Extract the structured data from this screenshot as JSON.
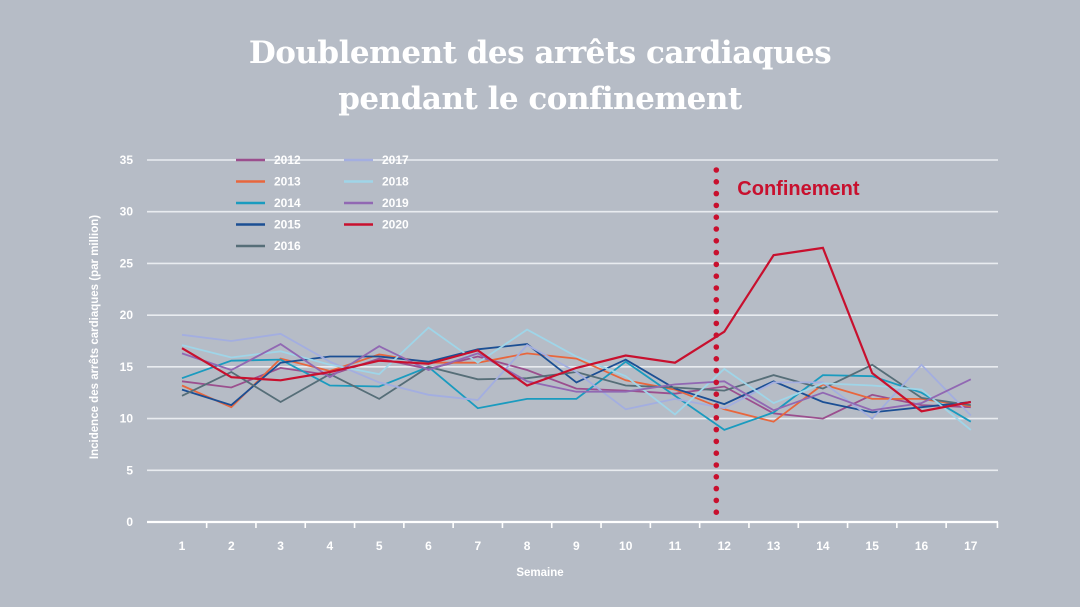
{
  "chart_data": {
    "type": "line",
    "title_lines": [
      "Doublement des arrêts cardiaques",
      "pendant le confinement"
    ],
    "xlabel": "Semaine",
    "ylabel": "Incidence des arrêts cardiaques (par million)",
    "categories": [
      "1",
      "2",
      "3",
      "4",
      "5",
      "6",
      "7",
      "8",
      "9",
      "10",
      "11",
      "12",
      "13",
      "14",
      "15",
      "16",
      "17"
    ],
    "ylim": [
      0,
      35
    ],
    "yticks": [
      0,
      5,
      10,
      15,
      20,
      25,
      30,
      35
    ],
    "grid": true,
    "legend_position": "top-left",
    "annotation": {
      "label": "Confinement",
      "at_category": "12",
      "color": "#c8102e"
    },
    "series": [
      {
        "name": "2012",
        "color": "#9b4f8e",
        "values": [
          13.6,
          13.0,
          14.9,
          14.2,
          15.8,
          14.8,
          16.0,
          14.7,
          12.9,
          12.7,
          12.4,
          13.1,
          10.5,
          10.0,
          12.3,
          11.3,
          11.1
        ]
      },
      {
        "name": "2013",
        "color": "#e8663d",
        "values": [
          13.2,
          11.1,
          15.8,
          14.6,
          16.2,
          15.4,
          15.4,
          16.3,
          15.8,
          13.7,
          12.8,
          10.9,
          9.7,
          13.3,
          11.9,
          11.9,
          11.2
        ]
      },
      {
        "name": "2014",
        "color": "#1a9bbf",
        "values": [
          13.9,
          15.6,
          15.7,
          13.2,
          13.1,
          15.0,
          11.0,
          11.9,
          11.9,
          15.5,
          12.2,
          8.9,
          10.6,
          14.2,
          14.1,
          12.5,
          9.7
        ]
      },
      {
        "name": "2015",
        "color": "#1b4f94",
        "values": [
          12.8,
          11.3,
          15.4,
          16.0,
          16.0,
          15.5,
          16.7,
          17.2,
          13.5,
          15.7,
          12.9,
          11.4,
          13.6,
          11.6,
          10.6,
          11.1,
          11.6
        ]
      },
      {
        "name": "2016",
        "color": "#566e78",
        "values": [
          12.2,
          14.5,
          11.6,
          14.3,
          11.9,
          15.0,
          13.8,
          13.9,
          14.5,
          13.2,
          13.0,
          12.7,
          14.2,
          12.9,
          15.2,
          12.0,
          11.3
        ]
      },
      {
        "name": "2017",
        "color": "#a3aee0",
        "values": [
          18.1,
          17.5,
          18.2,
          15.5,
          13.5,
          12.3,
          11.8,
          17.1,
          14.5,
          10.9,
          11.9,
          11.0,
          13.5,
          13.5,
          10.0,
          15.2,
          10.3
        ]
      },
      {
        "name": "2018",
        "color": "#9fd5e8",
        "values": [
          17.1,
          15.9,
          16.5,
          15.2,
          14.3,
          18.8,
          15.4,
          18.6,
          16.0,
          14.1,
          10.4,
          14.8,
          11.5,
          13.4,
          13.2,
          12.8,
          8.9
        ]
      },
      {
        "name": "2019",
        "color": "#9168b3",
        "values": [
          16.3,
          14.7,
          17.2,
          14.0,
          17.0,
          14.7,
          16.3,
          13.6,
          12.6,
          12.6,
          13.3,
          13.6,
          10.8,
          12.5,
          10.8,
          11.5,
          13.8
        ]
      },
      {
        "name": "2020",
        "color": "#c8102e",
        "values": [
          16.8,
          14.0,
          13.7,
          14.5,
          15.6,
          15.3,
          16.6,
          13.2,
          14.9,
          16.1,
          15.4,
          18.4,
          25.8,
          26.5,
          14.4,
          10.7,
          11.6
        ]
      }
    ]
  }
}
